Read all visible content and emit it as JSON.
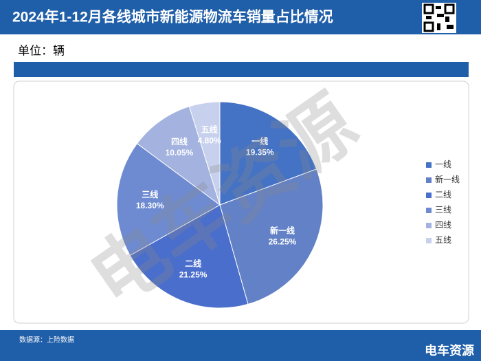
{
  "chart_data": {
    "type": "pie",
    "title": "2024年1-12月各线城市新能源物流车销量占比情况",
    "unit": "单位：辆",
    "source": "数据源：上险数据",
    "watermark": "电车资源",
    "logo": "电车资源",
    "categories": [
      "一线",
      "新一线",
      "二线",
      "三线",
      "四线",
      "五线"
    ],
    "values": [
      19.35,
      26.25,
      21.25,
      18.3,
      10.05,
      4.8
    ],
    "value_labels": [
      "19.35%",
      "26.25%",
      "21.25%",
      "18.30%",
      "10.05%",
      "4.80%"
    ],
    "colors": [
      "#4472c4",
      "#6381c6",
      "#4a6ecb",
      "#6e8bd2",
      "#a3b2df",
      "#c7d1ee"
    ],
    "legend": "right"
  }
}
